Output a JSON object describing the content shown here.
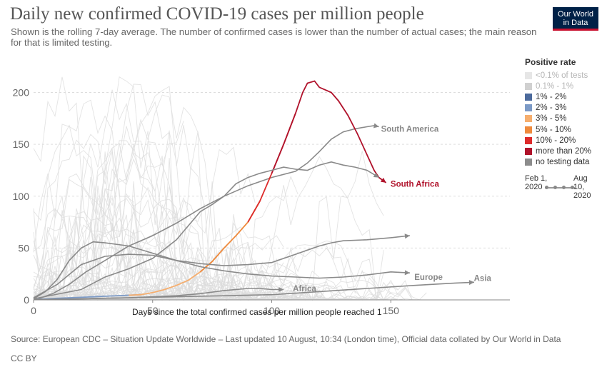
{
  "header": {
    "title": "Daily new confirmed COVID-19 cases per million people",
    "subtitle": "Shown is the rolling 7-day average. The number of confirmed cases is lower than the number of actual cases; the main reason for that is limited testing.",
    "logo_line1": "Our World",
    "logo_line2": "in Data"
  },
  "footer": {
    "source": "Source: European CDC – Situation Update Worldwide – Last updated 10 August, 10:34 (London time), Official data collated by Our World in Data",
    "license": "CC BY"
  },
  "legend": {
    "title": "Positive rate",
    "items": [
      {
        "label": "<0.1% of tests",
        "color": "#e6e6e6",
        "muted": true
      },
      {
        "label": "0.1% - 1%",
        "color": "#d0d0d0",
        "muted": true
      },
      {
        "label": "1% - 2%",
        "color": "#4c6a9c"
      },
      {
        "label": "2% - 3%",
        "color": "#7c9ac6"
      },
      {
        "label": "3% - 5%",
        "color": "#f6ae6e"
      },
      {
        "label": "5% - 10%",
        "color": "#ef8a3c"
      },
      {
        "label": "10% - 20%",
        "color": "#dd2b2b"
      },
      {
        "label": "more than 20%",
        "color": "#b0122b"
      },
      {
        "label": "no testing data",
        "color": "#8c8c8c"
      }
    ],
    "time_start": "Feb 1, 2020",
    "time_end": "Aug 10, 2020"
  },
  "chart_data": {
    "type": "line",
    "title": "Daily new confirmed COVID-19 cases per million people",
    "xlabel": "Days since the total confirmed cases per million people reached 1",
    "ylabel": "",
    "xlim": [
      0,
      200
    ],
    "ylim": [
      0,
      210
    ],
    "x_ticks": [
      0,
      50,
      100,
      150
    ],
    "y_ticks": [
      0,
      50,
      100,
      150,
      200
    ],
    "grid": "horizontal dashed",
    "background_series_color": "#dcdcdc",
    "series": [
      {
        "name": "South America",
        "color": "#8a8a8a",
        "points": [
          [
            2,
            1
          ],
          [
            8,
            6
          ],
          [
            15,
            15
          ],
          [
            22,
            27
          ],
          [
            30,
            38
          ],
          [
            40,
            52
          ],
          [
            50,
            62
          ],
          [
            60,
            74
          ],
          [
            70,
            88
          ],
          [
            80,
            100
          ],
          [
            90,
            110
          ],
          [
            100,
            118
          ],
          [
            110,
            124
          ],
          [
            115,
            132
          ],
          [
            120,
            143
          ],
          [
            125,
            155
          ],
          [
            130,
            162
          ],
          [
            135,
            165
          ],
          [
            140,
            167
          ],
          [
            143,
            168
          ],
          [
            145,
            167
          ]
        ]
      },
      {
        "name": "South Africa",
        "color": "#b0122b",
        "points": [
          [
            1,
            0.4
          ],
          [
            10,
            1.5
          ],
          [
            20,
            2.5
          ],
          [
            30,
            3.5
          ],
          [
            40,
            4.5
          ],
          [
            45,
            5
          ],
          [
            50,
            7
          ],
          [
            55,
            10
          ],
          [
            60,
            14
          ],
          [
            65,
            19
          ],
          [
            70,
            27
          ],
          [
            75,
            37
          ],
          [
            80,
            50
          ],
          [
            85,
            62
          ],
          [
            90,
            75
          ],
          [
            95,
            95
          ],
          [
            100,
            122
          ],
          [
            105,
            150
          ],
          [
            110,
            180
          ],
          [
            113,
            200
          ],
          [
            115,
            209
          ],
          [
            118,
            211
          ],
          [
            120,
            205
          ],
          [
            125,
            200
          ],
          [
            128,
            192
          ],
          [
            132,
            178
          ],
          [
            136,
            160
          ],
          [
            140,
            140
          ],
          [
            143,
            125
          ],
          [
            145,
            118
          ],
          [
            148,
            113
          ]
        ],
        "color_segments": [
          {
            "from_x": 0,
            "to_x": 43,
            "color": "#7c9ac6"
          },
          {
            "from_x": 43,
            "to_x": 73,
            "color": "#f6ae6e"
          },
          {
            "from_x": 73,
            "to_x": 92,
            "color": "#ef8a3c"
          },
          {
            "from_x": 92,
            "to_x": 105,
            "color": "#dd2b2b"
          },
          {
            "from_x": 105,
            "to_x": 149,
            "color": "#b0122b"
          }
        ]
      },
      {
        "name": "Europe",
        "color": "#8a8a8a",
        "points": [
          [
            0,
            1
          ],
          [
            5,
            8
          ],
          [
            10,
            20
          ],
          [
            15,
            38
          ],
          [
            20,
            50
          ],
          [
            25,
            56
          ],
          [
            30,
            55
          ],
          [
            40,
            52
          ],
          [
            50,
            45
          ],
          [
            60,
            38
          ],
          [
            70,
            32
          ],
          [
            80,
            28
          ],
          [
            90,
            25
          ],
          [
            100,
            23
          ],
          [
            110,
            22
          ],
          [
            120,
            21
          ],
          [
            130,
            22
          ],
          [
            140,
            24
          ],
          [
            150,
            27
          ],
          [
            158,
            26
          ]
        ]
      },
      {
        "name": "Asia",
        "color": "#8a8a8a",
        "points": [
          [
            0,
            0.3
          ],
          [
            20,
            1
          ],
          [
            40,
            2
          ],
          [
            60,
            3
          ],
          [
            80,
            4
          ],
          [
            100,
            5
          ],
          [
            120,
            8
          ],
          [
            140,
            11
          ],
          [
            160,
            14
          ],
          [
            175,
            16
          ],
          [
            185,
            17
          ]
        ]
      },
      {
        "name": "Africa",
        "color": "#8a8a8a",
        "points": [
          [
            0,
            0.3
          ],
          [
            20,
            1
          ],
          [
            40,
            2
          ],
          [
            60,
            4
          ],
          [
            70,
            6
          ],
          [
            80,
            9
          ],
          [
            90,
            11
          ],
          [
            95,
            11
          ],
          [
            100,
            10
          ],
          [
            105,
            10
          ]
        ]
      },
      {
        "name": "",
        "color": "#8a8a8a",
        "points": [
          [
            0,
            2
          ],
          [
            10,
            15
          ],
          [
            20,
            34
          ],
          [
            30,
            42
          ],
          [
            40,
            44
          ],
          [
            50,
            43
          ],
          [
            60,
            38
          ],
          [
            70,
            35
          ],
          [
            80,
            33
          ],
          [
            90,
            34
          ],
          [
            100,
            36
          ],
          [
            110,
            44
          ],
          [
            120,
            52
          ],
          [
            125,
            55
          ],
          [
            130,
            57
          ],
          [
            140,
            58
          ],
          [
            150,
            60
          ],
          [
            158,
            62
          ]
        ]
      },
      {
        "name": "",
        "color": "#8a8a8a",
        "points": [
          [
            0,
            1
          ],
          [
            20,
            10
          ],
          [
            30,
            22
          ],
          [
            40,
            30
          ],
          [
            50,
            40
          ],
          [
            60,
            58
          ],
          [
            70,
            85
          ],
          [
            75,
            92
          ],
          [
            80,
            100
          ],
          [
            85,
            112
          ],
          [
            90,
            118
          ],
          [
            95,
            122
          ],
          [
            100,
            125
          ],
          [
            105,
            128
          ],
          [
            110,
            126
          ],
          [
            115,
            125
          ],
          [
            120,
            130
          ],
          [
            125,
            133
          ],
          [
            130,
            130
          ],
          [
            135,
            128
          ],
          [
            140,
            125
          ],
          [
            145,
            118
          ]
        ]
      }
    ],
    "series_labels": [
      {
        "name": "South America",
        "text": "South America",
        "x": 145,
        "y": 165
      },
      {
        "name": "South Africa",
        "text": "South Africa",
        "x": 149,
        "y": 112
      },
      {
        "name": "Europe",
        "text": "Europe",
        "x": 159,
        "y": 22
      },
      {
        "name": "Asia",
        "text": "Asia",
        "x": 184,
        "y": 21
      },
      {
        "name": "Africa",
        "text": "Africa",
        "x": 108,
        "y": 11
      }
    ]
  }
}
